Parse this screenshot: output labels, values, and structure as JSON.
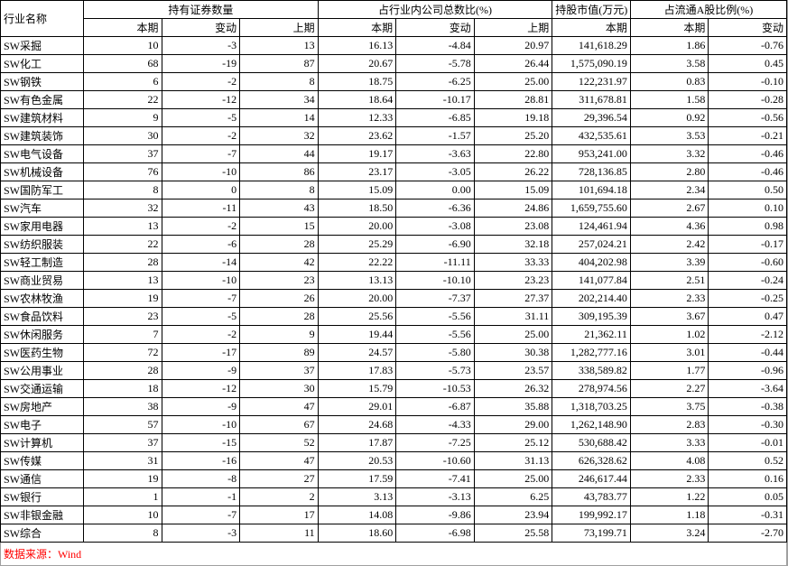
{
  "header": {
    "industry_name": "行业名称",
    "groups": [
      {
        "title": "持有证券数量",
        "cols": [
          "本期",
          "变动",
          "上期"
        ],
        "width": "col-num"
      },
      {
        "title": "占行业内公司总数比(%)",
        "cols": [
          "本期",
          "变动",
          "上期"
        ],
        "width": "col-num"
      },
      {
        "title": "持股市值(万元)",
        "cols": [
          "本期"
        ],
        "width": "col-num-lg"
      },
      {
        "title": "占流通A股比例(%)",
        "cols": [
          "本期",
          "变动"
        ],
        "width": "col-num"
      }
    ]
  },
  "rows": [
    {
      "n": "SW采掘",
      "c": [
        "10",
        "-3",
        "13",
        "16.13",
        "-4.84",
        "20.97",
        "141,618.29",
        "1.86",
        "-0.76"
      ]
    },
    {
      "n": "SW化工",
      "c": [
        "68",
        "-19",
        "87",
        "20.67",
        "-5.78",
        "26.44",
        "1,575,090.19",
        "3.58",
        "0.45"
      ]
    },
    {
      "n": "SW钢铁",
      "c": [
        "6",
        "-2",
        "8",
        "18.75",
        "-6.25",
        "25.00",
        "122,231.97",
        "0.83",
        "-0.10"
      ]
    },
    {
      "n": "SW有色金属",
      "c": [
        "22",
        "-12",
        "34",
        "18.64",
        "-10.17",
        "28.81",
        "311,678.81",
        "1.58",
        "-0.28"
      ]
    },
    {
      "n": "SW建筑材料",
      "c": [
        "9",
        "-5",
        "14",
        "12.33",
        "-6.85",
        "19.18",
        "29,396.54",
        "0.92",
        "-0.56"
      ]
    },
    {
      "n": "SW建筑装饰",
      "c": [
        "30",
        "-2",
        "32",
        "23.62",
        "-1.57",
        "25.20",
        "432,535.61",
        "3.53",
        "-0.21"
      ]
    },
    {
      "n": "SW电气设备",
      "c": [
        "37",
        "-7",
        "44",
        "19.17",
        "-3.63",
        "22.80",
        "953,241.00",
        "3.32",
        "-0.46"
      ]
    },
    {
      "n": "SW机械设备",
      "c": [
        "76",
        "-10",
        "86",
        "23.17",
        "-3.05",
        "26.22",
        "728,136.85",
        "2.80",
        "-0.46"
      ]
    },
    {
      "n": "SW国防军工",
      "c": [
        "8",
        "0",
        "8",
        "15.09",
        "0.00",
        "15.09",
        "101,694.18",
        "2.34",
        "0.50"
      ]
    },
    {
      "n": "SW汽车",
      "c": [
        "32",
        "-11",
        "43",
        "18.50",
        "-6.36",
        "24.86",
        "1,659,755.60",
        "2.67",
        "0.10"
      ]
    },
    {
      "n": "SW家用电器",
      "c": [
        "13",
        "-2",
        "15",
        "20.00",
        "-3.08",
        "23.08",
        "124,461.94",
        "4.36",
        "0.98"
      ]
    },
    {
      "n": "SW纺织服装",
      "c": [
        "22",
        "-6",
        "28",
        "25.29",
        "-6.90",
        "32.18",
        "257,024.21",
        "2.42",
        "-0.17"
      ]
    },
    {
      "n": "SW轻工制造",
      "c": [
        "28",
        "-14",
        "42",
        "22.22",
        "-11.11",
        "33.33",
        "404,202.98",
        "3.39",
        "-0.60"
      ]
    },
    {
      "n": "SW商业贸易",
      "c": [
        "13",
        "-10",
        "23",
        "13.13",
        "-10.10",
        "23.23",
        "141,077.84",
        "2.51",
        "-0.24"
      ]
    },
    {
      "n": "SW农林牧渔",
      "c": [
        "19",
        "-7",
        "26",
        "20.00",
        "-7.37",
        "27.37",
        "202,214.40",
        "2.33",
        "-0.25"
      ]
    },
    {
      "n": "SW食品饮料",
      "c": [
        "23",
        "-5",
        "28",
        "25.56",
        "-5.56",
        "31.11",
        "309,195.39",
        "3.67",
        "0.47"
      ]
    },
    {
      "n": "SW休闲服务",
      "c": [
        "7",
        "-2",
        "9",
        "19.44",
        "-5.56",
        "25.00",
        "21,362.11",
        "1.02",
        "-2.12"
      ]
    },
    {
      "n": "SW医药生物",
      "c": [
        "72",
        "-17",
        "89",
        "24.57",
        "-5.80",
        "30.38",
        "1,282,777.16",
        "3.01",
        "-0.44"
      ]
    },
    {
      "n": "SW公用事业",
      "c": [
        "28",
        "-9",
        "37",
        "17.83",
        "-5.73",
        "23.57",
        "338,589.82",
        "1.77",
        "-0.96"
      ]
    },
    {
      "n": "SW交通运输",
      "c": [
        "18",
        "-12",
        "30",
        "15.79",
        "-10.53",
        "26.32",
        "278,974.56",
        "2.27",
        "-3.64"
      ]
    },
    {
      "n": "SW房地产",
      "c": [
        "38",
        "-9",
        "47",
        "29.01",
        "-6.87",
        "35.88",
        "1,318,703.25",
        "3.75",
        "-0.38"
      ]
    },
    {
      "n": "SW电子",
      "c": [
        "57",
        "-10",
        "67",
        "24.68",
        "-4.33",
        "29.00",
        "1,262,148.90",
        "2.83",
        "-0.30"
      ]
    },
    {
      "n": "SW计算机",
      "c": [
        "37",
        "-15",
        "52",
        "17.87",
        "-7.25",
        "25.12",
        "530,688.42",
        "3.33",
        "-0.01"
      ]
    },
    {
      "n": "SW传媒",
      "c": [
        "31",
        "-16",
        "47",
        "20.53",
        "-10.60",
        "31.13",
        "626,328.62",
        "4.08",
        "0.52"
      ]
    },
    {
      "n": "SW通信",
      "c": [
        "19",
        "-8",
        "27",
        "17.59",
        "-7.41",
        "25.00",
        "246,617.44",
        "2.33",
        "0.16"
      ]
    },
    {
      "n": "SW银行",
      "c": [
        "1",
        "-1",
        "2",
        "3.13",
        "-3.13",
        "6.25",
        "43,783.77",
        "1.22",
        "0.05"
      ]
    },
    {
      "n": "SW非银金融",
      "c": [
        "10",
        "-7",
        "17",
        "14.08",
        "-9.86",
        "23.94",
        "199,992.17",
        "1.18",
        "-0.31"
      ]
    },
    {
      "n": "SW综合",
      "c": [
        "8",
        "-3",
        "11",
        "18.60",
        "-6.98",
        "25.58",
        "73,199.71",
        "3.24",
        "-2.70"
      ]
    }
  ],
  "footer": "数据来源：Wind",
  "col_widths": [
    "col-num",
    "col-num",
    "col-num",
    "col-num",
    "col-num",
    "col-num",
    "col-num-lg",
    "col-num",
    "col-num"
  ]
}
